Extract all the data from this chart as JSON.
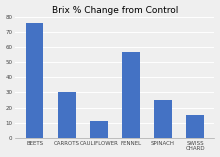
{
  "title": "Brix % Change from Control",
  "categories": [
    "BEETS",
    "CARROTS",
    "CAULIFLOWER",
    "FENNEL",
    "SPINACH",
    "SWISS\nCHARD"
  ],
  "values": [
    76,
    30,
    11,
    57,
    25,
    15
  ],
  "bar_color": "#4472C4",
  "ylim": [
    0,
    80
  ],
  "yticks": [
    0,
    10,
    20,
    30,
    40,
    50,
    60,
    70,
    80
  ],
  "title_fontsize": 6.5,
  "tick_fontsize": 4.0,
  "xlabel_fontsize": 4.0,
  "background_color": "#efefef",
  "grid_color": "#ffffff",
  "bar_width": 0.55
}
